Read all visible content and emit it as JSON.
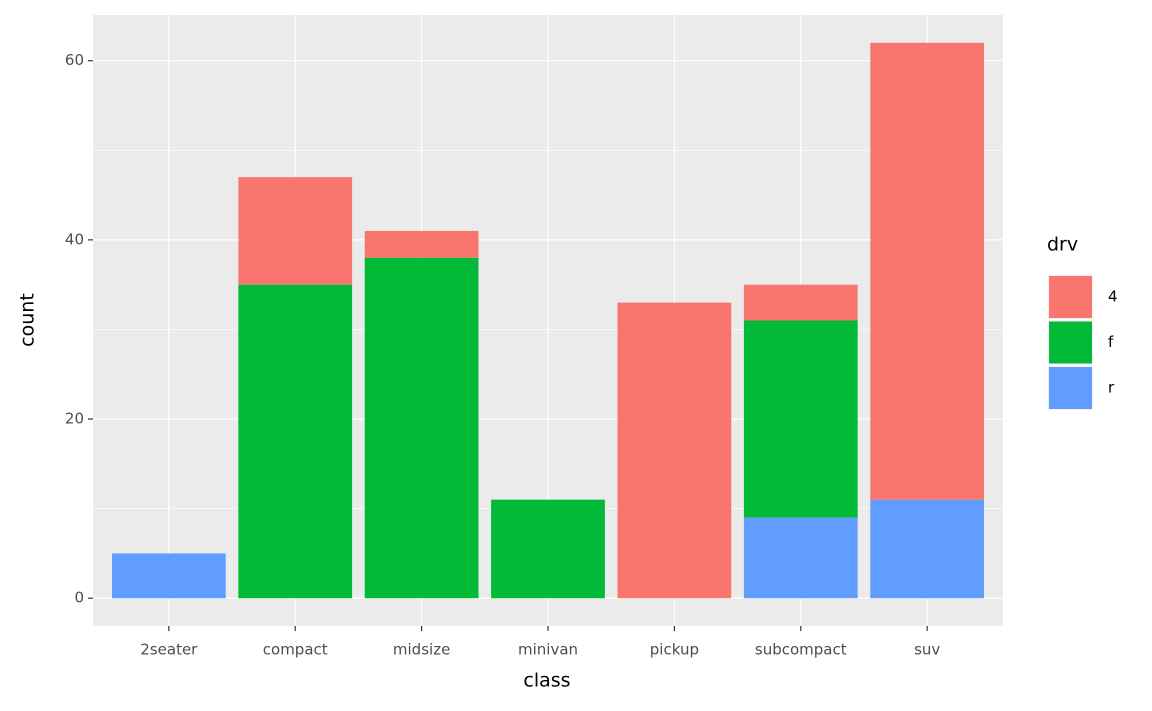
{
  "chart_data": {
    "type": "stacked_bar",
    "x_label": "class",
    "y_label": "count",
    "categories": [
      "2seater",
      "compact",
      "midsize",
      "minivan",
      "pickup",
      "subcompact",
      "suv"
    ],
    "series": [
      {
        "name": "4",
        "color": "#F8766D",
        "values": [
          0,
          12,
          3,
          0,
          33,
          4,
          51
        ]
      },
      {
        "name": "f",
        "color": "#00BA38",
        "values": [
          0,
          35,
          38,
          11,
          0,
          22,
          0
        ]
      },
      {
        "name": "r",
        "color": "#619CFF",
        "values": [
          5,
          0,
          0,
          0,
          0,
          9,
          11
        ]
      }
    ],
    "legend_title": "drv",
    "ylim": [
      -3.1,
      65.1
    ],
    "yticks": [
      0,
      20,
      40,
      60
    ],
    "grid": true
  }
}
